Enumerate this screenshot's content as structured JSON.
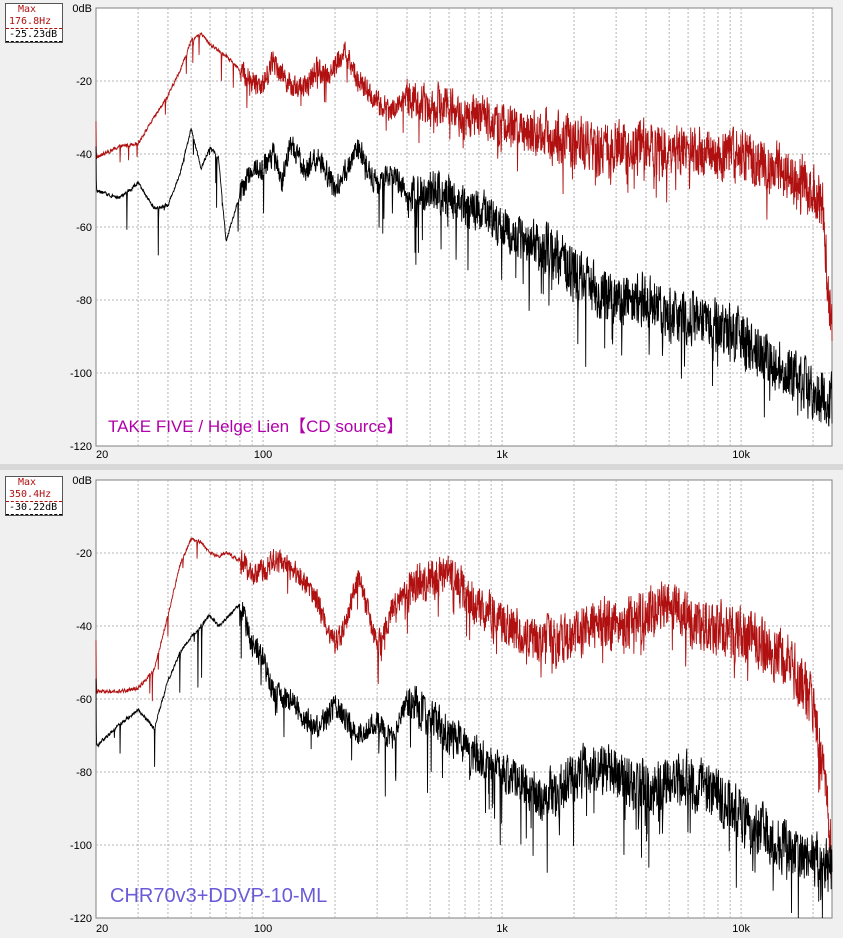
{
  "colors": {
    "series_max": "#b01010",
    "series_avg": "#000000",
    "grid": "#b4b4b4",
    "label_top": "#b000a8",
    "label_bottom": "#6a5ad8",
    "background": "#ffffff"
  },
  "panels": [
    {
      "max_box": {
        "title": "Max",
        "freq": "176.8Hz",
        "level": "-25.23dB"
      },
      "label": "TAKE FIVE / Helge Lien【CD source】"
    },
    {
      "max_box": {
        "title": "Max",
        "freq": "350.4Hz",
        "level": "-30.22dB"
      },
      "label": "CHR70v3+DDVP-10-ML"
    }
  ],
  "chart_data": [
    {
      "type": "line",
      "title": "",
      "xlabel": "",
      "ylabel": "",
      "x_scale": "log",
      "xlim": [
        20,
        24000
      ],
      "ylim": [
        -120,
        0
      ],
      "grid": true,
      "y_ticks": [
        "0dB",
        "-20",
        "-40",
        "-60",
        "-80",
        "-100",
        "-120"
      ],
      "x_ticks": [
        {
          "value": 20,
          "label": "20"
        },
        {
          "value": 100,
          "label": "100"
        },
        {
          "value": 1000,
          "label": "1k"
        },
        {
          "value": 10000,
          "label": "10k"
        }
      ],
      "annotation": "TAKE FIVE / Helge Lien【CD source】",
      "series": [
        {
          "color": "#b01010",
          "x": [
            20,
            25,
            30,
            35,
            40,
            45,
            50,
            55,
            60,
            70,
            80,
            90,
            100,
            110,
            120,
            130,
            150,
            170,
            180,
            200,
            220,
            250,
            300,
            350,
            400,
            500,
            600,
            700,
            800,
            1000,
            1200,
            1500,
            2000,
            2500,
            3000,
            4000,
            5000,
            6000,
            8000,
            10000,
            12000,
            15000,
            18000,
            20000,
            21000,
            22000,
            23000,
            24000
          ],
          "values": [
            -41,
            -38,
            -37,
            -30,
            -24,
            -17,
            -9,
            -7,
            -10,
            -13,
            -17,
            -20,
            -21,
            -14,
            -18,
            -21,
            -22,
            -16,
            -19,
            -16,
            -12,
            -20,
            -26,
            -28,
            -24,
            -27,
            -26,
            -31,
            -29,
            -32,
            -33,
            -35,
            -36,
            -39,
            -38,
            -38,
            -38,
            -39,
            -41,
            -40,
            -43,
            -45,
            -47,
            -50,
            -52,
            -55,
            -75,
            -90
          ]
        },
        {
          "color": "#000000",
          "x": [
            20,
            25,
            30,
            35,
            40,
            45,
            50,
            55,
            60,
            65,
            70,
            80,
            90,
            100,
            110,
            120,
            130,
            150,
            170,
            200,
            250,
            300,
            350,
            400,
            500,
            600,
            700,
            800,
            1000,
            1200,
            1500,
            2000,
            2500,
            3000,
            4000,
            5000,
            6000,
            8000,
            10000,
            12000,
            15000,
            18000,
            20000,
            24000
          ],
          "values": [
            -50,
            -52,
            -48,
            -55,
            -54,
            -45,
            -33,
            -44,
            -38,
            -41,
            -64,
            -51,
            -44,
            -44,
            -40,
            -48,
            -37,
            -45,
            -40,
            -50,
            -38,
            -49,
            -45,
            -52,
            -50,
            -51,
            -55,
            -55,
            -60,
            -63,
            -65,
            -72,
            -78,
            -80,
            -80,
            -84,
            -85,
            -87,
            -90,
            -95,
            -99,
            -102,
            -105,
            -108
          ]
        }
      ]
    },
    {
      "type": "line",
      "title": "",
      "xlabel": "",
      "ylabel": "",
      "x_scale": "log",
      "xlim": [
        20,
        24000
      ],
      "ylim": [
        -120,
        0
      ],
      "grid": true,
      "y_ticks": [
        "0dB",
        "-20",
        "-40",
        "-60",
        "-80",
        "-100",
        "-120"
      ],
      "x_ticks": [
        {
          "value": 20,
          "label": "20"
        },
        {
          "value": 100,
          "label": "100"
        },
        {
          "value": 1000,
          "label": "1k"
        },
        {
          "value": 10000,
          "label": "10k"
        }
      ],
      "annotation": "CHR70v3+DDVP-10-ML",
      "series": [
        {
          "color": "#b01010",
          "x": [
            20,
            25,
            30,
            35,
            40,
            45,
            50,
            55,
            60,
            65,
            70,
            80,
            90,
            100,
            110,
            130,
            150,
            170,
            200,
            220,
            250,
            300,
            350,
            400,
            500,
            600,
            700,
            800,
            1000,
            1200,
            1500,
            2000,
            2500,
            3000,
            4000,
            5000,
            6000,
            8000,
            10000,
            12000,
            15000,
            18000,
            20000,
            22000,
            24000
          ],
          "values": [
            -58,
            -58,
            -57,
            -52,
            -37,
            -23,
            -16,
            -17,
            -20,
            -21,
            -20,
            -22,
            -26,
            -25,
            -22,
            -24,
            -28,
            -34,
            -45,
            -40,
            -26,
            -46,
            -35,
            -30,
            -27,
            -25,
            -31,
            -35,
            -38,
            -42,
            -45,
            -42,
            -38,
            -40,
            -37,
            -33,
            -38,
            -40,
            -42,
            -45,
            -48,
            -55,
            -62,
            -80,
            -100
          ]
        },
        {
          "color": "#000000",
          "x": [
            20,
            25,
            30,
            35,
            40,
            45,
            50,
            55,
            60,
            65,
            70,
            80,
            90,
            100,
            110,
            130,
            150,
            170,
            200,
            250,
            300,
            350,
            400,
            500,
            600,
            700,
            800,
            1000,
            1200,
            1500,
            2000,
            2500,
            3000,
            4000,
            5000,
            6000,
            8000,
            10000,
            12000,
            15000,
            18000,
            20000,
            24000
          ],
          "values": [
            -73,
            -67,
            -63,
            -68,
            -55,
            -47,
            -43,
            -40,
            -37,
            -40,
            -38,
            -34,
            -45,
            -49,
            -58,
            -60,
            -65,
            -68,
            -62,
            -70,
            -66,
            -72,
            -60,
            -65,
            -70,
            -73,
            -76,
            -80,
            -82,
            -88,
            -82,
            -78,
            -80,
            -85,
            -82,
            -82,
            -86,
            -92,
            -96,
            -100,
            -103,
            -104,
            -106
          ]
        }
      ]
    }
  ]
}
